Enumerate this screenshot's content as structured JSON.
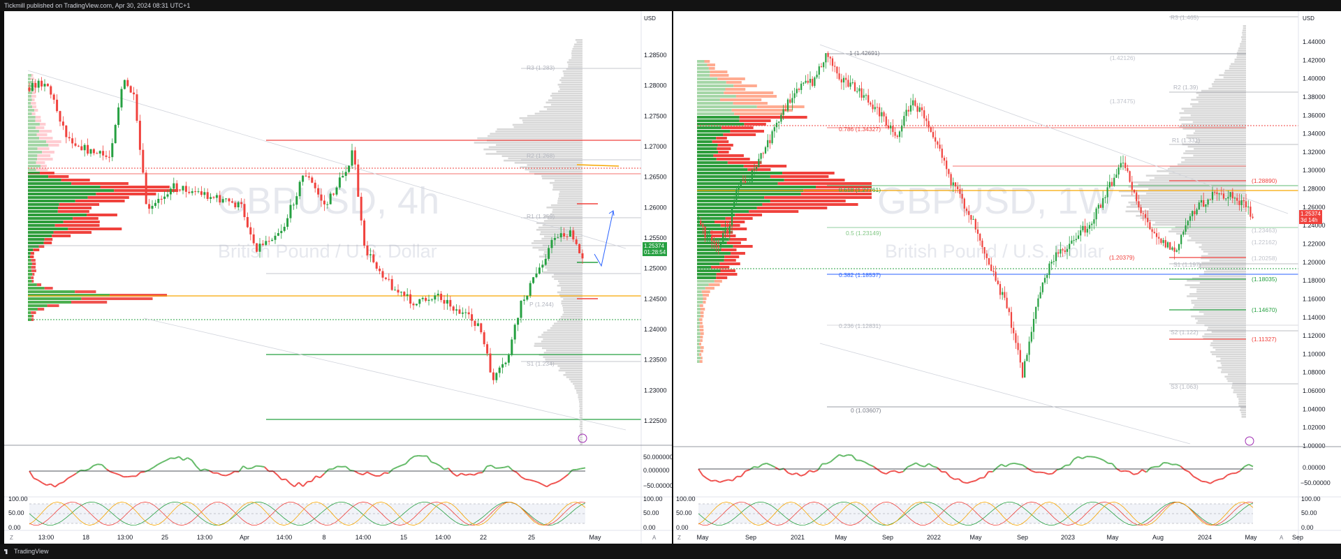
{
  "header": {
    "publisher_text": "Tickmill published on TradingView.com, Apr 30, 2024 08:31 UTC+1"
  },
  "footer": {
    "brand": "TradingView"
  },
  "colors": {
    "up": "#26a041",
    "down": "#f0423d",
    "profile_gray": "#d8d8d8",
    "orange": "#f7a600"
  },
  "left_chart": {
    "symbol_watermark": "GBPUSD, 4h",
    "name_watermark": "British Pound / U.S. Dollar",
    "currency": "USD",
    "price_ticks": [
      "1.28500",
      "1.28000",
      "1.27500",
      "1.27000",
      "1.26500",
      "1.26000",
      "1.25500",
      "1.25000",
      "1.24500",
      "1.24000",
      "1.23500",
      "1.23000",
      "1.22500"
    ],
    "current_price": "1.25374",
    "countdown": "01:28:54",
    "pivot_labels": [
      "R3 (1.283)",
      "R2 (1.268)",
      "R1 (1.259)",
      "P (1.244)",
      "S1 (1.234)"
    ],
    "time_ticks": [
      "13:00",
      "18",
      "13:00",
      "25",
      "13:00",
      "Apr",
      "14:00",
      "8",
      "14:00",
      "15",
      "14:00",
      "22",
      "25",
      "May"
    ],
    "osc_ticks": [
      "50.000000",
      "0.000000",
      "−50.000000"
    ],
    "stoch_ticks": [
      "100.00",
      "50.00",
      "0.00"
    ],
    "corner_left": "Z",
    "corner_right": "A"
  },
  "right_chart": {
    "symbol_watermark": "GBPUSD, 1W",
    "name_watermark": "British Pound / U.S. Dollar",
    "currency": "USD",
    "price_ticks": [
      "1.44000",
      "1.42000",
      "1.40000",
      "1.38000",
      "1.36000",
      "1.34000",
      "1.32000",
      "1.30000",
      "1.28000",
      "1.26000",
      "1.24000",
      "1.22000",
      "1.20000",
      "1.18000",
      "1.16000",
      "1.14000",
      "1.12000",
      "1.10000",
      "1.08000",
      "1.06000",
      "1.04000",
      "1.02000",
      "1.00000"
    ],
    "current_price": "1.25374",
    "countdown": "3d 14h",
    "fib_labels": [
      "1 (1.42691)",
      "0.786 (1.34327)",
      "0.618 (1.27761)",
      "0.5 (1.23149)",
      "0.382 (1.18537)",
      "0.236 (1.12831)",
      "0 (1.03607)"
    ],
    "pivot_labels": [
      "R3 (1.465)",
      "R2 (1.39)",
      "R1 (1.331)",
      "S1 (1.197)",
      "S2 (1.122)",
      "S3 (1.063)"
    ],
    "level_labels": [
      "(1.42126)",
      "(1.37475)",
      "(1.28890)",
      "(1.23463)",
      "(1.22162)",
      "(1.20379)",
      "(1.20258)",
      "(1.18035)",
      "(1.14670)",
      "(1.11327)"
    ],
    "time_ticks": [
      "May",
      "Sep",
      "2021",
      "May",
      "Sep",
      "2022",
      "May",
      "Sep",
      "2023",
      "May",
      "Aug",
      "2024",
      "May",
      "Sep"
    ],
    "osc_ticks": [
      "0.00000",
      "−50.00000"
    ],
    "stoch_ticks": [
      "100.00",
      "50.00",
      "0.00"
    ],
    "corner_left": "Z",
    "corner_right": "A"
  }
}
